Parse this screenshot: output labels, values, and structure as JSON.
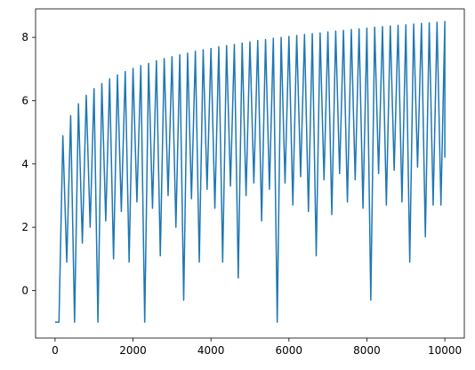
{
  "chart_data": {
    "type": "line",
    "x": [
      0,
      100,
      200,
      300,
      400,
      500,
      600,
      700,
      800,
      900,
      1000,
      1100,
      1200,
      1300,
      1400,
      1500,
      1600,
      1700,
      1800,
      1900,
      2000,
      2100,
      2200,
      2300,
      2400,
      2500,
      2600,
      2700,
      2800,
      2900,
      3000,
      3100,
      3200,
      3300,
      3400,
      3500,
      3600,
      3700,
      3800,
      3900,
      4000,
      4100,
      4200,
      4300,
      4400,
      4500,
      4600,
      4700,
      4800,
      4900,
      5000,
      5100,
      5200,
      5300,
      5400,
      5500,
      5600,
      5700,
      5800,
      5900,
      6000,
      6100,
      6200,
      6300,
      6400,
      6500,
      6600,
      6700,
      6800,
      6900,
      7000,
      7100,
      7200,
      7300,
      7400,
      7500,
      7600,
      7700,
      7800,
      7900,
      8000,
      8100,
      8200,
      8300,
      8400,
      8500,
      8600,
      8700,
      8800,
      8900,
      9000,
      9100,
      9200,
      9300,
      9400,
      9500,
      9600,
      9700,
      9800,
      9900,
      10000,
      10000
    ],
    "series": [
      {
        "color": "#1f77b4",
        "values": [
          -1.0,
          -1.0,
          4.89,
          0.9,
          5.53,
          -1.0,
          5.9,
          1.5,
          6.17,
          2.0,
          6.38,
          -1.0,
          6.54,
          2.2,
          6.69,
          1.0,
          6.81,
          2.5,
          6.92,
          0.9,
          7.02,
          2.8,
          7.11,
          -1.0,
          7.18,
          2.6,
          7.26,
          1.1,
          7.33,
          3.0,
          7.39,
          2.0,
          7.45,
          -0.3,
          7.5,
          2.9,
          7.56,
          0.9,
          7.61,
          3.2,
          7.65,
          2.6,
          7.7,
          0.9,
          7.74,
          3.3,
          7.78,
          0.4,
          7.82,
          3.0,
          7.86,
          3.4,
          7.9,
          2.2,
          7.93,
          3.2,
          7.97,
          -1.0,
          8.0,
          3.4,
          8.03,
          2.7,
          8.06,
          3.6,
          8.09,
          2.5,
          8.12,
          1.1,
          8.14,
          3.5,
          8.17,
          2.4,
          8.2,
          3.7,
          8.22,
          2.8,
          8.25,
          3.5,
          8.27,
          2.6,
          8.29,
          -0.3,
          8.32,
          3.7,
          8.34,
          2.7,
          8.36,
          3.8,
          8.38,
          2.8,
          8.4,
          0.9,
          8.42,
          3.9,
          8.44,
          1.7,
          8.46,
          2.7,
          8.48,
          2.7,
          8.5,
          4.2
        ]
      }
    ],
    "xlim": [
      -500,
      10500
    ],
    "ylim": [
      -1.5,
      8.9
    ],
    "xticks": [
      0,
      2000,
      4000,
      6000,
      8000,
      10000
    ],
    "yticks": [
      0,
      2,
      4,
      6,
      8
    ]
  }
}
